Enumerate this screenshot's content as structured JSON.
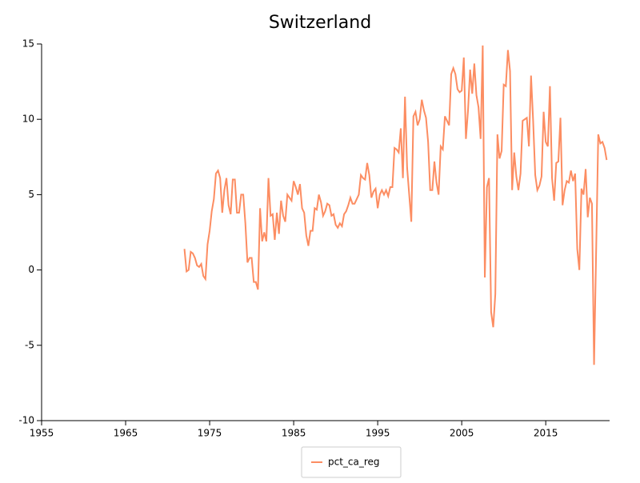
{
  "chart_data": {
    "type": "line",
    "title": "Switzerland",
    "x": [
      1972,
      1972.25,
      1972.5,
      1972.75,
      1973,
      1973.25,
      1973.5,
      1973.75,
      1974,
      1974.25,
      1974.5,
      1974.75,
      1975,
      1975.25,
      1975.5,
      1975.75,
      1976,
      1976.25,
      1976.5,
      1976.75,
      1977,
      1977.25,
      1977.5,
      1977.75,
      1978,
      1978.25,
      1978.5,
      1978.75,
      1979,
      1979.25,
      1979.5,
      1979.75,
      1980,
      1980.25,
      1980.5,
      1980.75,
      1981,
      1981.25,
      1981.5,
      1981.75,
      1982,
      1982.25,
      1982.5,
      1982.75,
      1983,
      1983.25,
      1983.5,
      1983.75,
      1984,
      1984.25,
      1984.5,
      1984.75,
      1985,
      1985.25,
      1985.5,
      1985.75,
      1986,
      1986.25,
      1986.5,
      1986.75,
      1987,
      1987.25,
      1987.5,
      1987.75,
      1988,
      1988.25,
      1988.5,
      1988.75,
      1989,
      1989.25,
      1989.5,
      1989.75,
      1990,
      1990.25,
      1990.5,
      1990.75,
      1991,
      1991.25,
      1991.5,
      1991.75,
      1992,
      1992.25,
      1992.5,
      1992.75,
      1993,
      1993.25,
      1993.5,
      1993.75,
      1994,
      1994.25,
      1994.5,
      1994.75,
      1995,
      1995.25,
      1995.5,
      1995.75,
      1996,
      1996.25,
      1996.5,
      1996.75,
      1997,
      1997.25,
      1997.5,
      1997.75,
      1998,
      1998.25,
      1998.5,
      1998.75,
      1999,
      1999.25,
      1999.5,
      1999.75,
      2000,
      2000.25,
      2000.5,
      2000.75,
      2001,
      2001.25,
      2001.5,
      2001.75,
      2002,
      2002.25,
      2002.5,
      2002.75,
      2003,
      2003.25,
      2003.5,
      2003.75,
      2004,
      2004.25,
      2004.5,
      2004.75,
      2005,
      2005.25,
      2005.5,
      2005.75,
      2006,
      2006.25,
      2006.5,
      2006.75,
      2007,
      2007.25,
      2007.5,
      2007.75,
      2008,
      2008.25,
      2008.5,
      2008.75,
      2009,
      2009.25,
      2009.5,
      2009.75,
      2010,
      2010.25,
      2010.5,
      2010.75,
      2011,
      2011.25,
      2011.5,
      2011.75,
      2012,
      2012.25,
      2012.5,
      2012.75,
      2013,
      2013.25,
      2013.5,
      2013.75,
      2014,
      2014.25,
      2014.5,
      2014.75,
      2015,
      2015.25,
      2015.5,
      2015.75,
      2016,
      2016.25,
      2016.5,
      2016.75,
      2017,
      2017.25,
      2017.5,
      2017.75,
      2018,
      2018.25,
      2018.5,
      2018.75,
      2019,
      2019.25,
      2019.5,
      2019.75,
      2020,
      2020.25,
      2020.5,
      2020.75,
      2021,
      2021.25,
      2021.5,
      2021.75,
      2022,
      2022.25
    ],
    "series": [
      {
        "name": "pct_ca_reg",
        "color": "#fc8d62",
        "values": [
          1.4,
          -0.1,
          0.0,
          1.2,
          1.1,
          0.8,
          0.3,
          0.2,
          0.4,
          -0.4,
          -0.6,
          1.7,
          2.6,
          3.9,
          4.7,
          6.4,
          6.6,
          6.1,
          3.8,
          5.3,
          6.1,
          4.3,
          3.7,
          6.0,
          6.0,
          3.8,
          3.8,
          5.0,
          5.0,
          3.1,
          0.5,
          0.8,
          0.8,
          -0.8,
          -0.8,
          -1.3,
          4.1,
          1.9,
          2.5,
          1.9,
          6.1,
          3.6,
          3.7,
          2.0,
          3.8,
          2.4,
          4.6,
          3.6,
          3.2,
          5.0,
          4.8,
          4.6,
          5.9,
          5.5,
          5.0,
          5.7,
          4.1,
          3.8,
          2.3,
          1.6,
          2.6,
          2.6,
          4.1,
          4.0,
          5.0,
          4.5,
          3.6,
          3.9,
          4.4,
          4.3,
          3.6,
          3.7,
          3.0,
          2.8,
          3.1,
          2.9,
          3.7,
          3.9,
          4.3,
          4.8,
          4.4,
          4.4,
          4.7,
          5.0,
          6.3,
          6.1,
          6.0,
          7.1,
          6.3,
          4.8,
          5.2,
          5.4,
          4.1,
          5.0,
          5.3,
          5.0,
          5.3,
          4.9,
          5.5,
          5.5,
          8.1,
          8.0,
          7.8,
          9.4,
          6.1,
          11.5,
          6.8,
          5.0,
          3.2,
          10.2,
          10.5,
          9.6,
          10.0,
          11.3,
          10.6,
          10.1,
          8.5,
          5.3,
          5.3,
          7.2,
          5.8,
          5.0,
          8.2,
          8.0,
          10.2,
          9.9,
          9.6,
          13.0,
          13.4,
          13.0,
          12.0,
          11.8,
          11.9,
          14.1,
          8.7,
          10.6,
          13.3,
          11.7,
          13.7,
          11.6,
          10.8,
          8.7,
          14.9,
          -0.5,
          5.5,
          6.1,
          -2.8,
          -3.8,
          -1.6,
          9.0,
          7.4,
          7.9,
          12.3,
          12.2,
          14.6,
          13.2,
          5.3,
          7.8,
          6.2,
          5.3,
          6.4,
          9.9,
          10.0,
          10.1,
          8.2,
          12.9,
          9.9,
          6.3,
          5.3,
          5.6,
          6.2,
          10.5,
          8.5,
          8.2,
          12.2,
          6.1,
          4.6,
          7.1,
          7.2,
          10.1,
          4.3,
          5.3,
          5.9,
          5.8,
          6.6,
          5.9,
          6.4,
          1.4,
          0.0,
          5.4,
          5.0,
          6.7,
          3.5,
          4.8,
          4.4,
          -6.3,
          1.3,
          9.0,
          8.4,
          8.5,
          8.1,
          7.3
        ]
      }
    ],
    "xlim": [
      1955,
      2022.6
    ],
    "xticks": [
      1955,
      1965,
      1975,
      1985,
      1995,
      2005,
      2015
    ],
    "ylim": [
      -10,
      15
    ],
    "yticks": [
      -10,
      -5,
      0,
      5,
      10,
      15
    ],
    "legend": "bottom"
  }
}
